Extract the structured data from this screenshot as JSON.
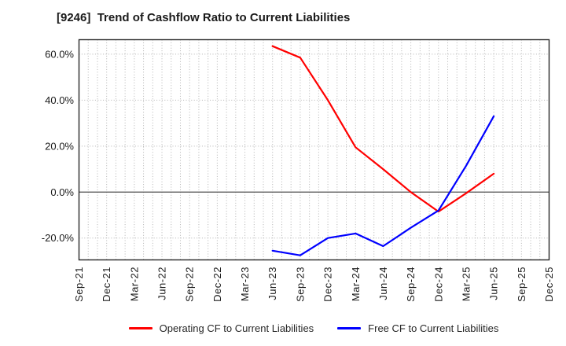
{
  "title": "[9246]  Trend of Cashflow Ratio to Current Liabilities",
  "legend": [
    {
      "label": "Operating CF to Current Liabilities",
      "color": "#ff0000"
    },
    {
      "label": "Free CF to Current Liabilities",
      "color": "#0000ff"
    }
  ],
  "chart_data": {
    "type": "line",
    "title": "[9246]  Trend of Cashflow Ratio to Current Liabilities",
    "xlabel": "",
    "ylabel": "",
    "categories": [
      "Sep-21",
      "Dec-21",
      "Mar-22",
      "Jun-22",
      "Sep-22",
      "Dec-22",
      "Mar-23",
      "Jun-23",
      "Sep-23",
      "Dec-23",
      "Mar-24",
      "Jun-24",
      "Sep-24",
      "Dec-24",
      "Mar-25",
      "Jun-25",
      "Sep-25",
      "Dec-25"
    ],
    "series": [
      {
        "name": "Operating CF to Current Liabilities",
        "color": "#ff0000",
        "values": [
          null,
          null,
          null,
          null,
          null,
          null,
          null,
          63.5,
          58.5,
          40.0,
          19.5,
          10.0,
          0.0,
          -8.5,
          -0.5,
          8.0,
          null,
          null
        ]
      },
      {
        "name": "Free CF to Current Liabilities",
        "color": "#0000ff",
        "values": [
          null,
          null,
          null,
          null,
          null,
          null,
          null,
          -25.5,
          -27.5,
          -20.0,
          -18.0,
          -23.5,
          -15.5,
          -8.0,
          11.5,
          33.0,
          null,
          null
        ]
      }
    ],
    "yticks": [
      {
        "value": 60,
        "label": "60.0%"
      },
      {
        "value": 40,
        "label": "40.0%"
      },
      {
        "value": 20,
        "label": "20.0%"
      },
      {
        "value": 0,
        "label": "0.0%"
      },
      {
        "value": -20,
        "label": "-20.0%"
      }
    ],
    "ylim": [
      -29.5,
      66.3
    ],
    "grid": {
      "horizontal_major": [
        60,
        40,
        20,
        -20
      ],
      "zero_line": 0,
      "minor_vertical_per_quarter": 3
    },
    "legend_position": "bottom"
  },
  "colors": {
    "background": "#ffffff",
    "grid_dotted": "#b3b3b3",
    "zero_line": "#4d4d4d",
    "plot_border": "#262626",
    "tick_text": "#1a1a1a",
    "title_text": "#1a1a1a"
  }
}
